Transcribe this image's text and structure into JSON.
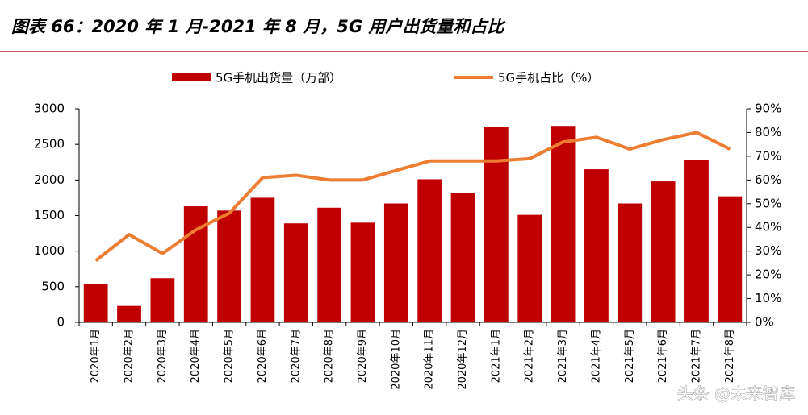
{
  "chart_data": {
    "type": "bar_line",
    "title": "图表 66：2020 年 1 月-2021 年 8 月，5G 用户出货量和占比",
    "watermark": "头条 @未来智库",
    "categories": [
      "2020年1月",
      "2020年2月",
      "2020年3月",
      "2020年4月",
      "2020年5月",
      "2020年6月",
      "2020年7月",
      "2020年8月",
      "2020年9月",
      "2020年10月",
      "2020年11月",
      "2020年12月",
      "2021年1月",
      "2021年2月",
      "2021年3月",
      "2021年4月",
      "2021年5月",
      "2021年6月",
      "2021年7月",
      "2021年8月"
    ],
    "series": [
      {
        "name": "5G手机出货量（万部）",
        "type": "bar",
        "color": "#c00000",
        "values": [
          540,
          230,
          620,
          1630,
          1570,
          1750,
          1390,
          1610,
          1400,
          1670,
          2010,
          1820,
          2740,
          1510,
          2760,
          2150,
          1670,
          1980,
          2280,
          1770
        ]
      },
      {
        "name": "5G手机占比（%）",
        "type": "line",
        "axis": "y2",
        "color": "#ed7d31",
        "values": [
          26,
          37,
          29,
          39,
          46,
          61,
          62,
          60,
          60,
          64,
          68,
          68,
          68,
          69,
          76,
          78,
          73,
          77,
          80,
          73
        ]
      }
    ],
    "ylim": [
      0,
      3000
    ],
    "yticks": [
      0,
      500,
      1000,
      1500,
      2000,
      2500,
      3000
    ],
    "y2lim": [
      0,
      90
    ],
    "y2ticks": [
      {
        "value": 0,
        "label": "0%"
      },
      {
        "value": 10,
        "label": "10%"
      },
      {
        "value": 20,
        "label": "20%"
      },
      {
        "value": 30,
        "label": "30%"
      },
      {
        "value": 40,
        "label": "40%"
      },
      {
        "value": 50,
        "label": "50%"
      },
      {
        "value": 60,
        "label": "60%"
      },
      {
        "value": 70,
        "label": "70%"
      },
      {
        "value": 80,
        "label": "80%"
      },
      {
        "value": 90,
        "label": "90%"
      }
    ],
    "legend": "top"
  }
}
